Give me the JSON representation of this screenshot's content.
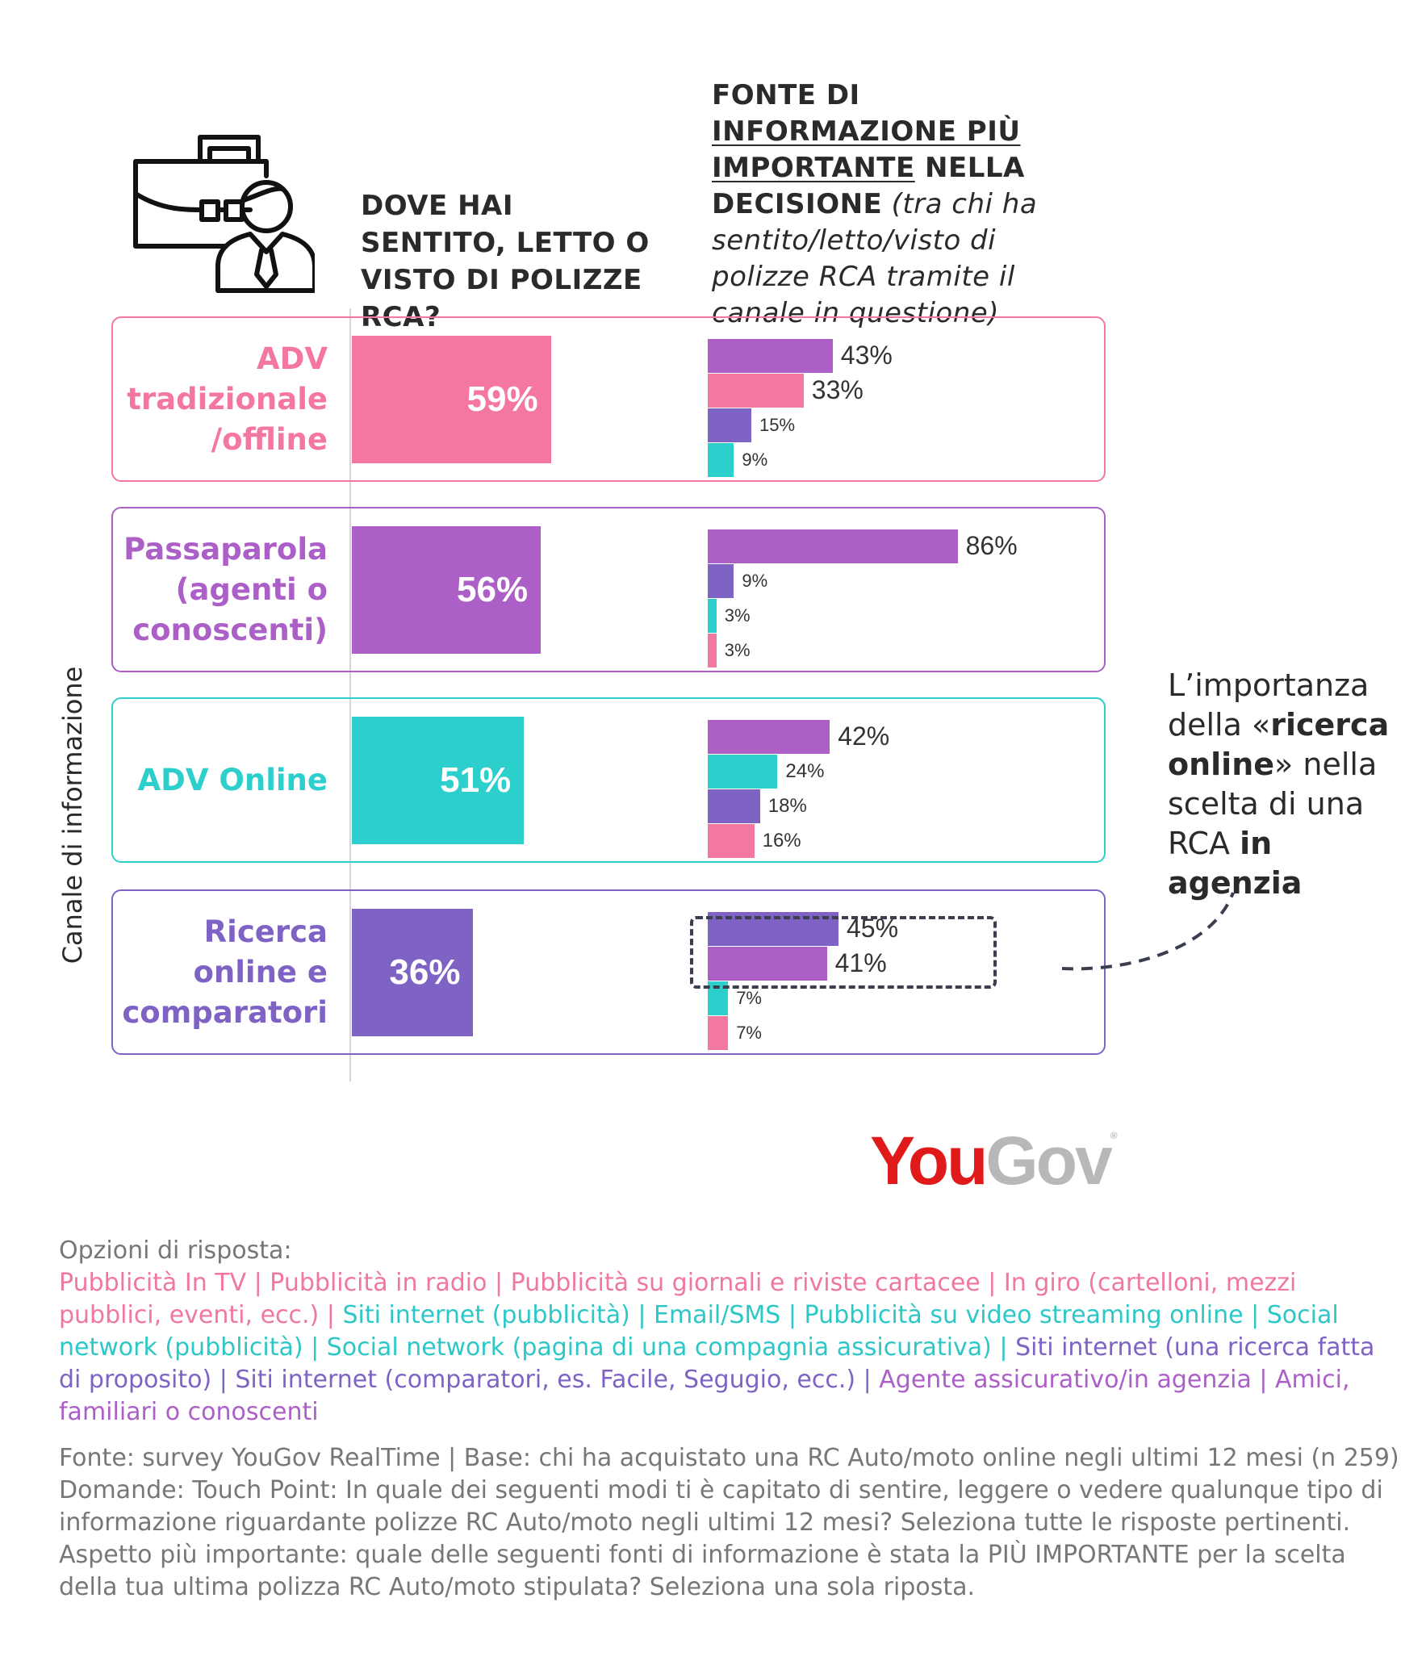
{
  "header": {
    "q1": "DOVE HAI SENTITO, LETTO O VISTO DI POLIZZE RCA?",
    "q2_part1": "FONTE DI ",
    "q2_part2": "INFORMAZIONE PIÙ IMPORTANTE",
    "q2_part3": " NELLA DECISIONE",
    "q2_part4": " (tra chi  ha sentito/letto/visto di polizze RCA tramite il canale in questione)"
  },
  "axis_label": "Canale di informazione",
  "colors": {
    "pink": "#f3779f",
    "purple": "#ab5fc7",
    "teal": "#2ccfcb",
    "violet": "#7e63c4"
  },
  "chart_data": {
    "type": "bar",
    "categories": [
      "ADV tradizionale /offline",
      "Passaparola (agenti o conoscenti)",
      "ADV Online",
      "Ricerca online e comparatori"
    ],
    "categories_display": [
      [
        "ADV",
        "tradizionale",
        "/offline"
      ],
      [
        "Passaparola",
        "(agenti o",
        "conoscenti)"
      ],
      [
        "ADV Online"
      ],
      [
        "Ricerca",
        "online e",
        "comparatori"
      ]
    ],
    "category_colors": [
      "pink",
      "purple",
      "teal",
      "violet"
    ],
    "main_values": [
      59,
      56,
      51,
      36
    ],
    "main_labels": [
      "59%",
      "56%",
      "51%",
      "36%"
    ],
    "sub_series": [
      [
        {
          "value": 43,
          "label": "43%",
          "color": "purple"
        },
        {
          "value": 33,
          "label": "33%",
          "color": "pink"
        },
        {
          "value": 15,
          "label": "15%",
          "color": "violet"
        },
        {
          "value": 9,
          "label": "9%",
          "color": "teal"
        }
      ],
      [
        {
          "value": 86,
          "label": "86%",
          "color": "purple"
        },
        {
          "value": 9,
          "label": "9%",
          "color": "violet"
        },
        {
          "value": 3,
          "label": "3%",
          "color": "teal"
        },
        {
          "value": 3,
          "label": "3%",
          "color": "pink"
        }
      ],
      [
        {
          "value": 42,
          "label": "42%",
          "color": "purple"
        },
        {
          "value": 24,
          "label": "24%",
          "color": "teal"
        },
        {
          "value": 18,
          "label": "18%",
          "color": "violet"
        },
        {
          "value": 16,
          "label": "16%",
          "color": "pink"
        }
      ],
      [
        {
          "value": 45,
          "label": "45%",
          "color": "violet"
        },
        {
          "value": 41,
          "label": "41%",
          "color": "purple"
        },
        {
          "value": 7,
          "label": "7%",
          "color": "teal"
        },
        {
          "value": 7,
          "label": "7%",
          "color": "pink"
        }
      ]
    ]
  },
  "callout": {
    "l1": "L’importanza",
    "l2a": "della «",
    "l2b": "ricerca",
    "l3a": "online",
    "l3b": "» nella",
    "l4": "scelta di una",
    "l5a": "RCA ",
    "l5b": "in agenzia"
  },
  "logo": {
    "you": "You",
    "gov": "Gov",
    "reg": "®"
  },
  "options": {
    "title": "Opzioni di risposta:",
    "items": [
      {
        "text": "Pubblicità In TV",
        "color": "pink"
      },
      {
        "text": "Pubblicità in radio",
        "color": "pink"
      },
      {
        "text": "Pubblicità su giornali e riviste cartacee",
        "color": "pink"
      },
      {
        "text": "In giro (cartelloni, mezzi pubblici, eventi, ecc.)",
        "color": "pink"
      },
      {
        "text": "Siti internet (pubblicità)",
        "color": "teal"
      },
      {
        "text": "Email/SMS",
        "color": "teal"
      },
      {
        "text": "Pubblicità su video streaming online",
        "color": "teal"
      },
      {
        "text": "Social network (pubblicità)",
        "color": "teal"
      },
      {
        "text": "Social network (pagina di una compagnia assicurativa)",
        "color": "teal"
      },
      {
        "text": "Siti internet (una ricerca fatta di proposito)",
        "color": "violet"
      },
      {
        "text": "Siti internet (comparatori, es. Facile, Segugio, ecc.)",
        "color": "violet"
      },
      {
        "text": "Agente assicurativo/in agenzia",
        "color": "purple"
      },
      {
        "text": "Amici, familiari o conoscenti",
        "color": "purple"
      }
    ]
  },
  "source": {
    "fonte": "Fonte: survey YouGov RealTime | Base: chi ha acquistato una RC Auto/moto online negli ultimi 12 mesi (n 259)",
    "domande": "Domande: Touch Point: In quale dei seguenti modi ti è capitato di sentire, leggere o vedere qualunque tipo di informazione riguardante polizze RC Auto/moto negli ultimi 12 mesi? Seleziona tutte le risposte pertinenti.",
    "aspetto": "Aspetto più importante: quale delle seguenti fonti di informazione è stata la PIÙ IMPORTANTE per la scelta della tua ultima polizza RC Auto/moto stipulata? Seleziona una sola riposta."
  }
}
